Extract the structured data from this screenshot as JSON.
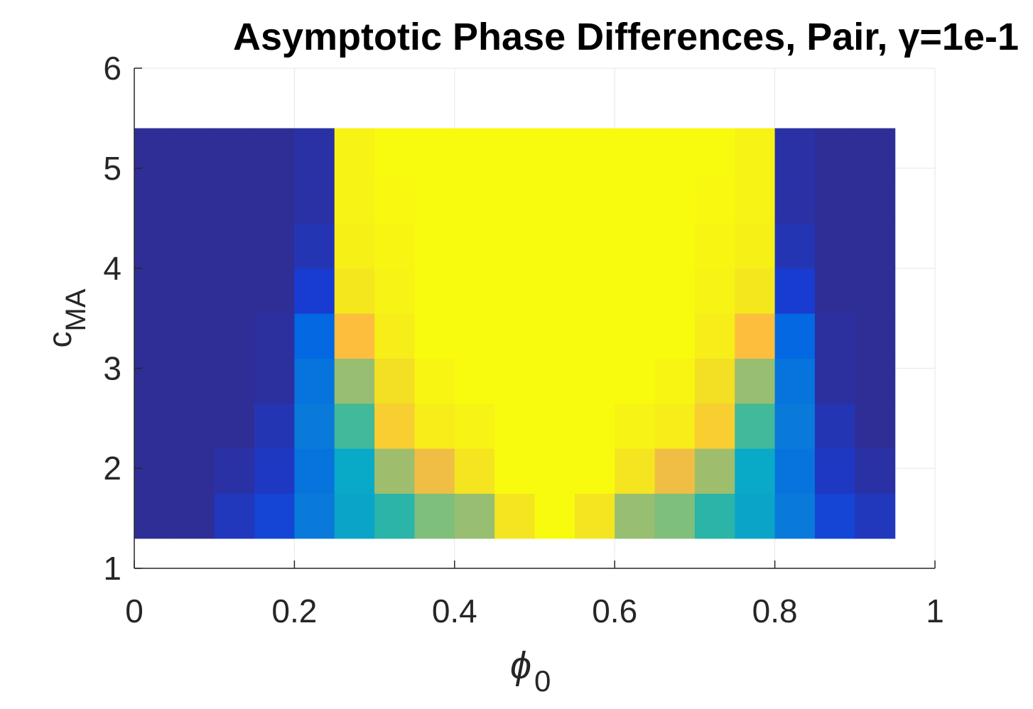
{
  "chart_data": {
    "type": "heatmap",
    "title": "Asymptotic Phase Differences, Pair, γ=1e-1",
    "xlabel": "ϕ",
    "xlabel_subscript": "0",
    "ylabel": "c",
    "ylabel_subscript": "MA",
    "xlim": [
      0,
      1
    ],
    "ylim": [
      1,
      6
    ],
    "xticks": [
      0,
      0.2,
      0.4,
      0.6,
      0.8,
      1
    ],
    "yticks": [
      1,
      2,
      3,
      4,
      5,
      6
    ],
    "xtick_labels": [
      "0",
      "0.2",
      "0.4",
      "0.6",
      "0.8",
      "1"
    ],
    "ytick_labels": [
      "1",
      "2",
      "3",
      "4",
      "5",
      "6"
    ],
    "grid": true,
    "colormap": "parula",
    "color_range": [
      0,
      1
    ],
    "x_centers": [
      0.025,
      0.075,
      0.125,
      0.175,
      0.225,
      0.275,
      0.325,
      0.375,
      0.425,
      0.475,
      0.525,
      0.575,
      0.625,
      0.675,
      0.725,
      0.775,
      0.825,
      0.875,
      0.925
    ],
    "y_edges": [
      1.3,
      1.75,
      2.2,
      2.65,
      3.1,
      3.55,
      4.0,
      4.45,
      4.9,
      5.4
    ],
    "values": [
      [
        0.02,
        0.02,
        0.02,
        0.02,
        0.02,
        0.02,
        0.02,
        0.02,
        0.02
      ],
      [
        0.02,
        0.02,
        0.02,
        0.02,
        0.02,
        0.02,
        0.02,
        0.02,
        0.02
      ],
      [
        0.07,
        0.04,
        0.02,
        0.02,
        0.02,
        0.02,
        0.02,
        0.02,
        0.02
      ],
      [
        0.12,
        0.08,
        0.06,
        0.03,
        0.03,
        0.02,
        0.02,
        0.02,
        0.02
      ],
      [
        0.25,
        0.23,
        0.25,
        0.23,
        0.2,
        0.1,
        0.06,
        0.04,
        0.04
      ],
      [
        0.38,
        0.4,
        0.52,
        0.64,
        0.8,
        0.93,
        0.96,
        0.97,
        0.97
      ],
      [
        0.48,
        0.65,
        0.85,
        0.9,
        0.95,
        0.97,
        0.98,
        0.99,
        1.0
      ],
      [
        0.6,
        0.78,
        0.95,
        0.98,
        1.0,
        1.0,
        1.0,
        1.0,
        1.0
      ],
      [
        0.64,
        0.92,
        0.97,
        1.0,
        1.0,
        1.0,
        1.0,
        1.0,
        1.0
      ],
      [
        0.92,
        1.0,
        1.0,
        1.0,
        1.0,
        1.0,
        1.0,
        1.0,
        1.0
      ],
      [
        1.0,
        1.0,
        1.0,
        1.0,
        1.0,
        1.0,
        1.0,
        1.0,
        1.0
      ],
      [
        0.92,
        1.0,
        1.0,
        1.0,
        1.0,
        1.0,
        1.0,
        1.0,
        1.0
      ],
      [
        0.64,
        0.92,
        0.97,
        1.0,
        1.0,
        1.0,
        1.0,
        1.0,
        1.0
      ],
      [
        0.6,
        0.78,
        0.95,
        0.98,
        1.0,
        1.0,
        1.0,
        1.0,
        1.0
      ],
      [
        0.48,
        0.65,
        0.85,
        0.9,
        0.95,
        0.97,
        0.98,
        0.99,
        1.0
      ],
      [
        0.38,
        0.4,
        0.52,
        0.64,
        0.8,
        0.93,
        0.96,
        0.97,
        0.97
      ],
      [
        0.25,
        0.23,
        0.25,
        0.23,
        0.2,
        0.1,
        0.06,
        0.04,
        0.04
      ],
      [
        0.12,
        0.08,
        0.06,
        0.03,
        0.03,
        0.02,
        0.02,
        0.02,
        0.02
      ],
      [
        0.07,
        0.04,
        0.02,
        0.02,
        0.02,
        0.02,
        0.02,
        0.02,
        0.02
      ]
    ]
  },
  "colors": {
    "background": "#ffffff",
    "axes_background": "#ffffff",
    "axis_line": "#262626",
    "grid": "#e6e6e6",
    "text": "#262626",
    "title": "#000000"
  }
}
